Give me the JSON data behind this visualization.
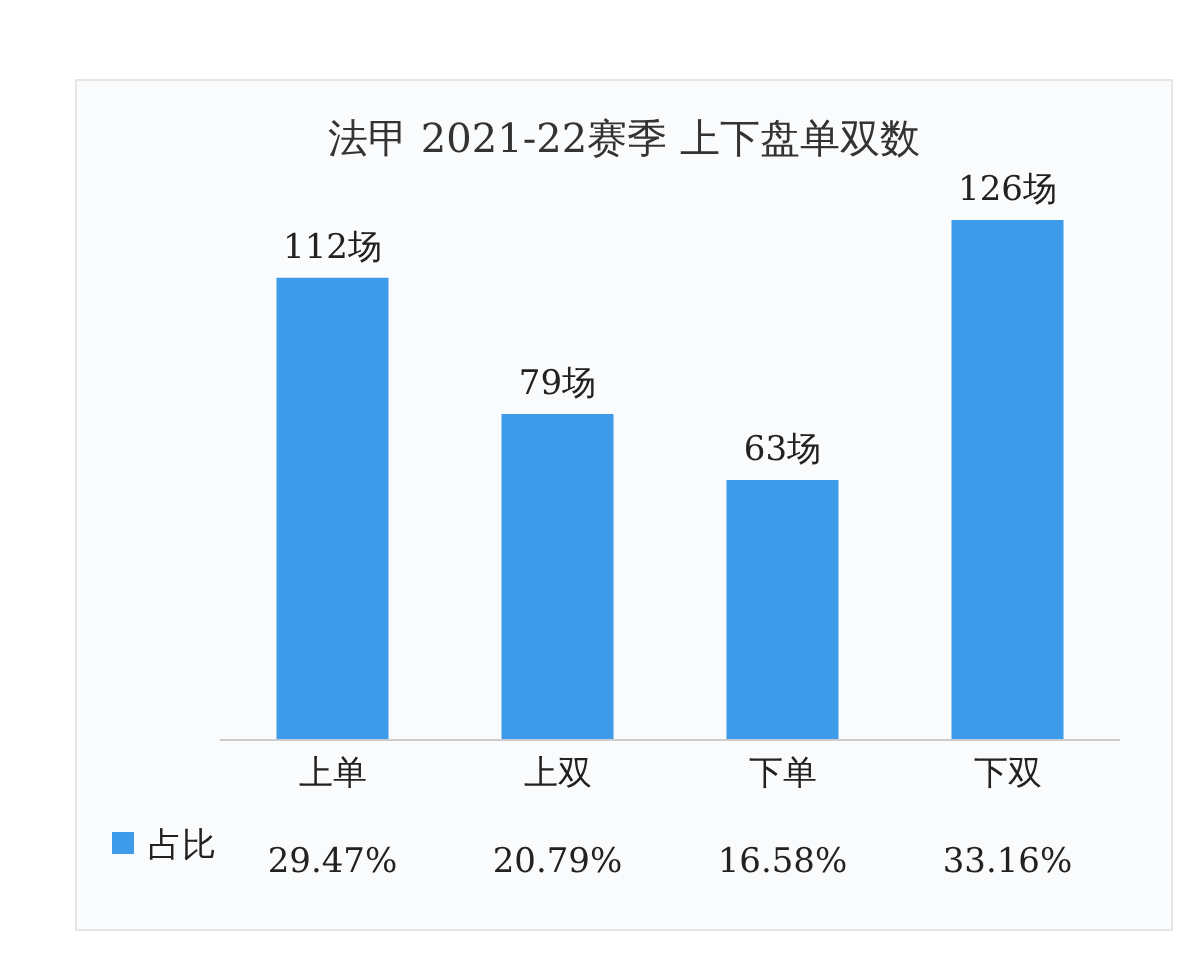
{
  "chart_data": {
    "type": "bar",
    "title": "法甲 2021-22赛季 上下盘单双数",
    "categories": [
      "上单",
      "上双",
      "下单",
      "下双"
    ],
    "series": [
      {
        "name": "占比",
        "color": "#3d9be9",
        "values": [
          112,
          79,
          63,
          126
        ],
        "value_labels": [
          "112场",
          "79场",
          "63场",
          "126场"
        ]
      }
    ],
    "legend": "bottom left",
    "annotations": [
      "29.47%",
      "20.79%",
      "16.58%",
      "33.16%"
    ]
  }
}
